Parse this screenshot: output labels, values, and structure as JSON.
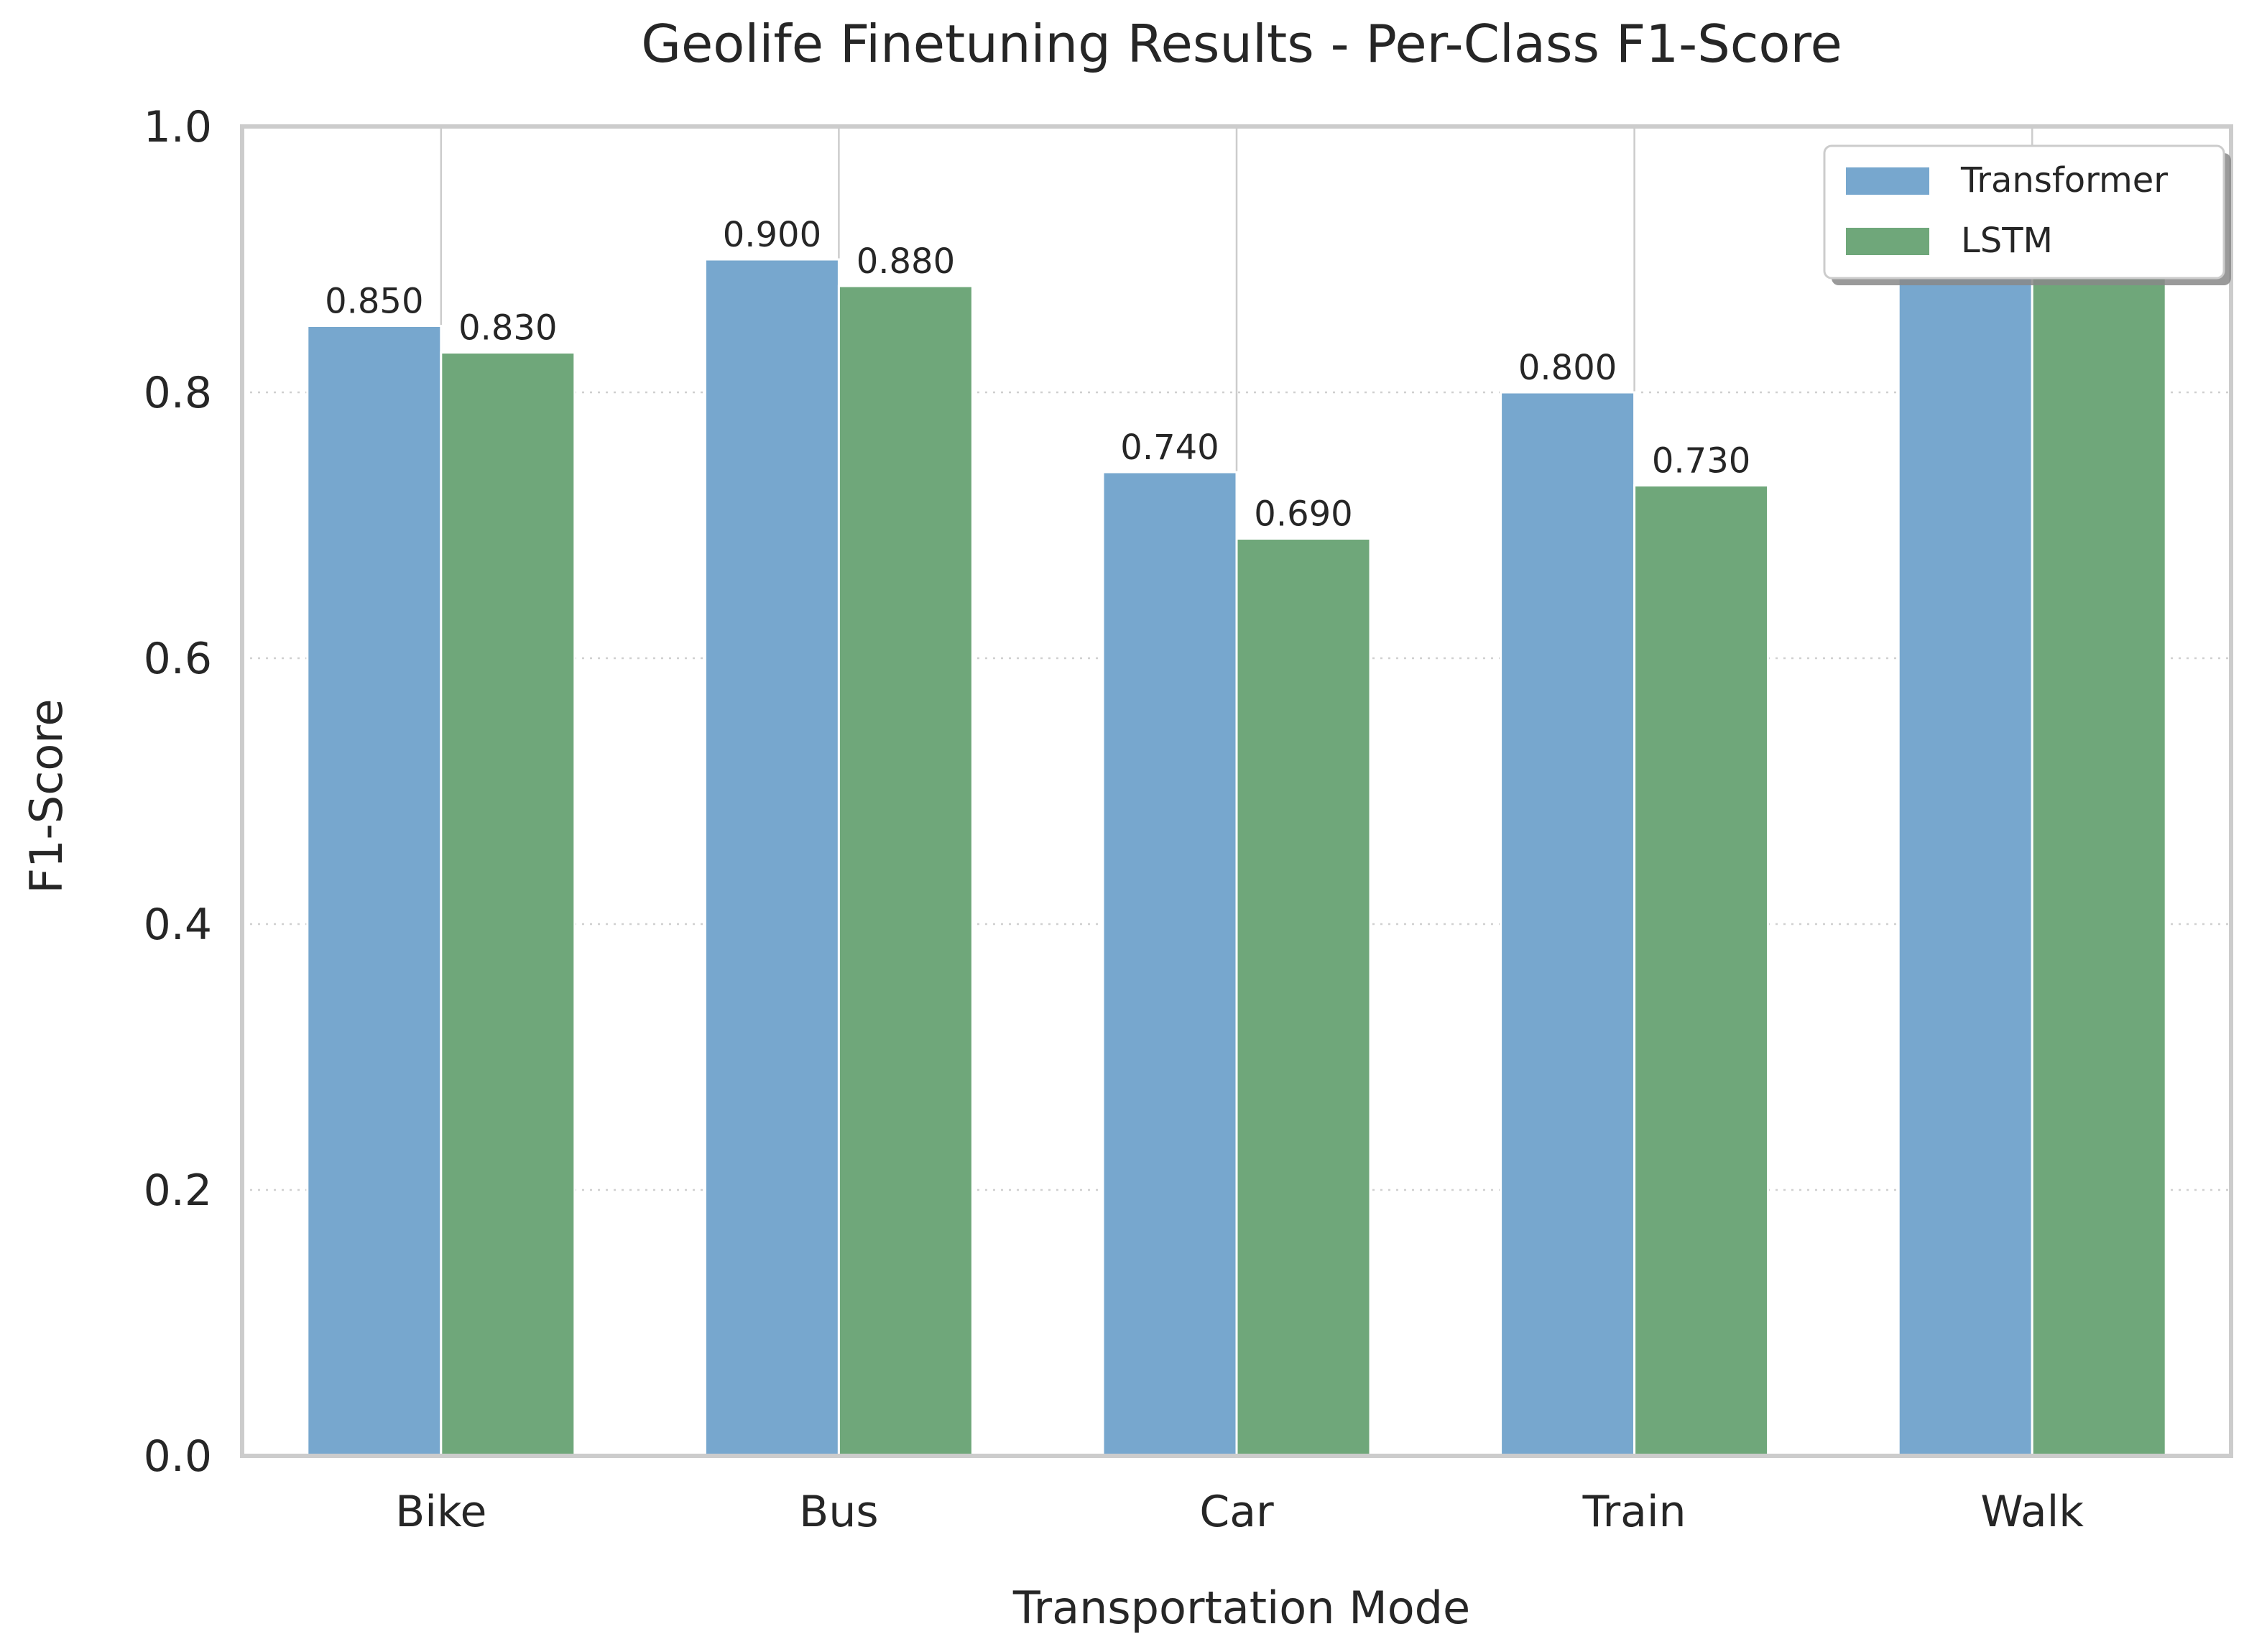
{
  "chart_data": {
    "type": "bar",
    "title": "Geolife Finetuning Results - Per-Class F1-Score",
    "xlabel": "Transportation Mode",
    "ylabel": "F1-Score",
    "categories": [
      "Bike",
      "Bus",
      "Car",
      "Train",
      "Walk"
    ],
    "series": [
      {
        "name": "Transformer",
        "color": "#77a7ce",
        "values": [
          0.85,
          0.9,
          0.74,
          0.8,
          0.93
        ],
        "labels": [
          "0.850",
          "0.900",
          "0.740",
          "0.800",
          ""
        ]
      },
      {
        "name": "LSTM",
        "color": "#6fa77a",
        "values": [
          0.83,
          0.88,
          0.69,
          0.73,
          0.92
        ],
        "labels": [
          "0.830",
          "0.880",
          "0.690",
          "0.730",
          ""
        ]
      }
    ],
    "ylim": [
      0,
      1.0
    ],
    "yticks": [
      "0.0",
      "0.2",
      "0.4",
      "0.6",
      "0.8",
      "1.0"
    ],
    "grid": "dotted horizontal, solid vertical at categories",
    "legend_position": "top-right"
  }
}
